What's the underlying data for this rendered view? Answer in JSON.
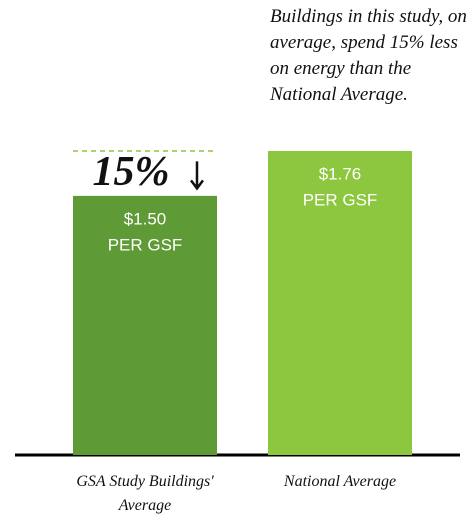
{
  "chart_data": {
    "type": "bar",
    "categories": [
      "GSA Study Buildings' Average",
      "National Average"
    ],
    "values": [
      1.5,
      1.76
    ],
    "value_labels": [
      "$1.50",
      "$1.76"
    ],
    "unit_label": "PER GSF",
    "colors": [
      "#5e9a35",
      "#8dc63f"
    ],
    "ylim": [
      0,
      2
    ],
    "difference_label": "15%",
    "annotation": "Buildings in this study, on average, spend 15% less on energy than the National Average."
  }
}
